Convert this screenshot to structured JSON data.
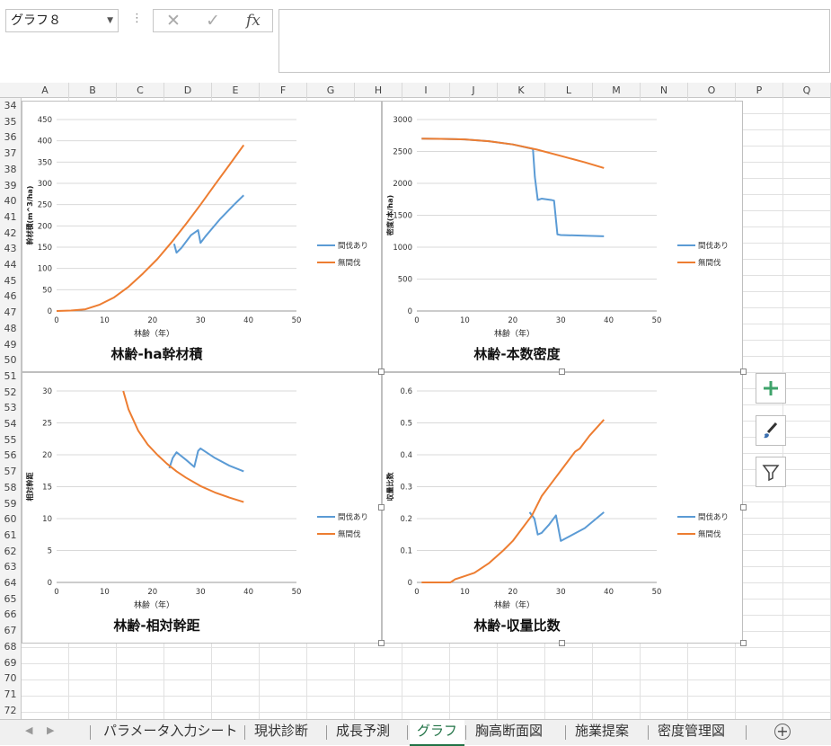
{
  "formula_bar": {
    "name_box": "グラフ８",
    "cancel_icon": "✕",
    "enter_icon": "✓",
    "fx_label": "fx",
    "formula": ""
  },
  "columns": [
    "A",
    "B",
    "C",
    "D",
    "E",
    "F",
    "G",
    "H",
    "I",
    "J",
    "K",
    "L",
    "M",
    "N",
    "O",
    "P",
    "Q"
  ],
  "rows": [
    "34",
    "35",
    "36",
    "37",
    "38",
    "39",
    "40",
    "41",
    "42",
    "43",
    "44",
    "45",
    "46",
    "47",
    "48",
    "49",
    "50",
    "51",
    "52",
    "53",
    "54",
    "55",
    "56",
    "57",
    "58",
    "59",
    "60",
    "61",
    "62",
    "63",
    "64",
    "65",
    "66",
    "67",
    "68",
    "69",
    "70",
    "71",
    "72"
  ],
  "colors": {
    "series1": "#5b9bd5",
    "series2": "#ed7d31",
    "accent": "#217346"
  },
  "chart_data": [
    {
      "type": "line",
      "title": "林齢-ha幹材積",
      "xlabel": "林齢（年）",
      "ylabel": "幹材積(m^3/ha)",
      "xlim": [
        0,
        50
      ],
      "ylim": [
        0,
        450
      ],
      "xticks": [
        0,
        10,
        20,
        30,
        40,
        50
      ],
      "yticks": [
        0,
        50,
        100,
        150,
        200,
        250,
        300,
        350,
        400,
        450
      ],
      "grid": true,
      "legend": "right",
      "series": [
        {
          "name": "間伐あり",
          "color": "#5b9bd5",
          "x": [
            24.5,
            25,
            26,
            28,
            29.5,
            30,
            31,
            34,
            37,
            39
          ],
          "y": [
            158,
            137,
            148,
            178,
            190,
            160,
            175,
            215,
            250,
            272
          ]
        },
        {
          "name": "無間伐",
          "color": "#ed7d31",
          "x": [
            0,
            3,
            6,
            9,
            12,
            15,
            18,
            21,
            24,
            27,
            30,
            33,
            36,
            39
          ],
          "y": [
            0,
            1,
            4,
            15,
            32,
            57,
            88,
            122,
            162,
            205,
            250,
            297,
            343,
            390
          ]
        }
      ]
    },
    {
      "type": "line",
      "title": "林齢-本数密度",
      "xlabel": "林齢（年）",
      "ylabel": "密度(本/ha)",
      "xlim": [
        0,
        50
      ],
      "ylim": [
        0,
        3000
      ],
      "xticks": [
        0,
        10,
        20,
        30,
        40,
        50
      ],
      "yticks": [
        0,
        500,
        1000,
        1500,
        2000,
        2500,
        3000
      ],
      "grid": true,
      "legend": "right",
      "series": [
        {
          "name": "間伐あり",
          "color": "#5b9bd5",
          "x": [
            1,
            5,
            10,
            15,
            20,
            23,
            24.2,
            24.6,
            25.2,
            26,
            28,
            28.6,
            29.3,
            30,
            35,
            39
          ],
          "y": [
            2700,
            2698,
            2688,
            2660,
            2610,
            2560,
            2540,
            2100,
            1740,
            1760,
            1740,
            1730,
            1200,
            1190,
            1180,
            1170
          ]
        },
        {
          "name": "無間伐",
          "color": "#ed7d31",
          "x": [
            1,
            5,
            10,
            15,
            20,
            25,
            30,
            35,
            39
          ],
          "y": [
            2700,
            2698,
            2688,
            2660,
            2610,
            2530,
            2430,
            2330,
            2240
          ]
        }
      ]
    },
    {
      "type": "line",
      "title": "林齢-相対幹距",
      "xlabel": "林齢（年）",
      "ylabel": "相対幹距",
      "xlim": [
        0,
        50
      ],
      "ylim": [
        0,
        30
      ],
      "xticks": [
        0,
        10,
        20,
        30,
        40,
        50
      ],
      "yticks": [
        0,
        5,
        10,
        15,
        20,
        25,
        30
      ],
      "grid": true,
      "legend": "right",
      "series": [
        {
          "name": "間伐あり",
          "color": "#5b9bd5",
          "x": [
            23.5,
            24.2,
            25,
            27,
            28.7,
            29.5,
            30,
            33,
            36,
            39
          ],
          "y": [
            17.9,
            19.5,
            20.4,
            19.2,
            18.1,
            20.6,
            21,
            19.5,
            18.3,
            17.4
          ]
        },
        {
          "name": "無間伐",
          "color": "#ed7d31",
          "x": [
            13.9,
            15,
            17,
            19,
            21,
            23,
            25,
            27,
            30,
            33,
            36,
            39
          ],
          "y": [
            30,
            27.1,
            23.8,
            21.6,
            20,
            18.6,
            17.4,
            16.4,
            15.1,
            14.1,
            13.3,
            12.6
          ]
        }
      ]
    },
    {
      "type": "line",
      "title": "林齢-収量比数",
      "xlabel": "林齢（年）",
      "ylabel": "収量比数",
      "xlim": [
        0,
        50
      ],
      "ylim": [
        0,
        0.6
      ],
      "xticks": [
        0,
        10,
        20,
        30,
        40,
        50
      ],
      "yticks": [
        0,
        0.1,
        0.2,
        0.3,
        0.4,
        0.5,
        0.6
      ],
      "grid": true,
      "legend": "right",
      "series": [
        {
          "name": "間伐あり",
          "color": "#5b9bd5",
          "x": [
            23.5,
            24.5,
            25.2,
            26,
            27.5,
            29,
            30,
            35,
            39
          ],
          "y": [
            0.22,
            0.2,
            0.15,
            0.155,
            0.18,
            0.21,
            0.13,
            0.17,
            0.22
          ]
        },
        {
          "name": "無間伐",
          "color": "#ed7d31",
          "x": [
            1,
            7,
            8,
            10,
            12,
            15,
            18,
            20,
            22,
            24,
            25,
            26,
            28,
            30,
            33,
            34,
            36,
            39
          ],
          "y": [
            0,
            0,
            0.01,
            0.02,
            0.03,
            0.06,
            0.1,
            0.13,
            0.17,
            0.21,
            0.24,
            0.27,
            0.31,
            0.35,
            0.41,
            0.42,
            0.46,
            0.51
          ]
        }
      ]
    }
  ],
  "sheet_tabs": [
    {
      "label": "パラメータ入力シート",
      "active": false
    },
    {
      "label": "現状診断",
      "active": false
    },
    {
      "label": "成長予測",
      "active": false
    },
    {
      "label": "グラフ",
      "active": true
    },
    {
      "label": "胸高断面図",
      "active": false
    },
    {
      "label": "施業提案",
      "active": false
    },
    {
      "label": "密度管理図",
      "active": false
    }
  ],
  "side_buttons": [
    "chart-elements-icon",
    "chart-styles-icon",
    "chart-filter-icon"
  ]
}
